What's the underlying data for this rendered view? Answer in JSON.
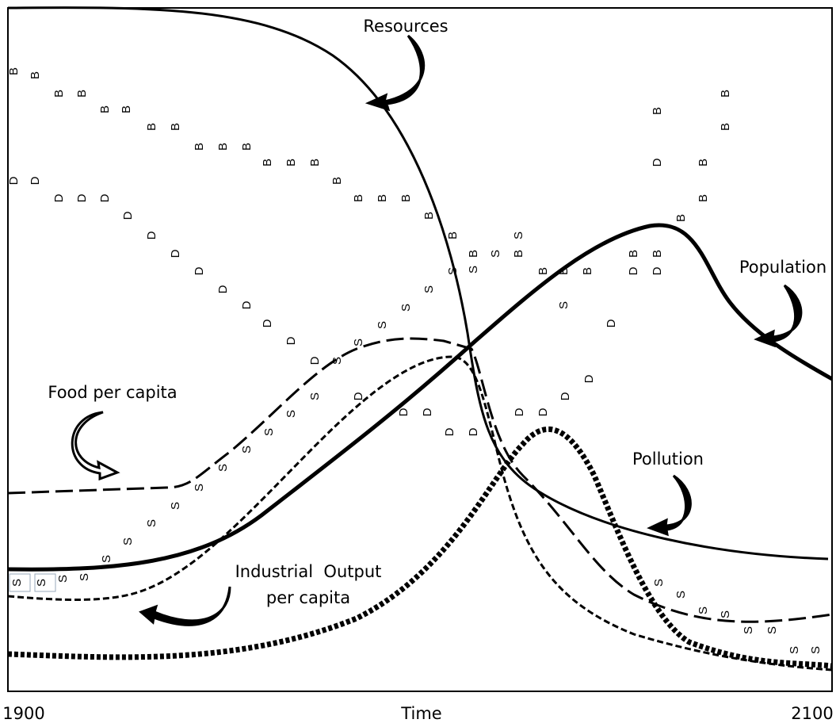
{
  "curve_labels": {
    "resources": "Resources",
    "population": "Population",
    "food": "Food per capita",
    "pollution": "Pollution",
    "industrial": [
      "Industrial  Output",
      "per capita"
    ]
  },
  "x_axis": {
    "start": "1900",
    "label": "Time",
    "end": "2100"
  },
  "markers": [
    "B",
    "D",
    "S"
  ]
}
